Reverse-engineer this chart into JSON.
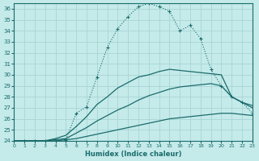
{
  "xlabel": "Humidex (Indice chaleur)",
  "background_color": "#c5eaea",
  "grid_color": "#a8d5d5",
  "line_color": "#1a6b6b",
  "xlim": [
    0,
    23
  ],
  "ylim": [
    24,
    36.5
  ],
  "xticks": [
    0,
    1,
    2,
    3,
    4,
    5,
    6,
    7,
    8,
    9,
    10,
    11,
    12,
    13,
    14,
    15,
    16,
    17,
    18,
    19,
    20,
    21,
    22,
    23
  ],
  "yticks": [
    24,
    25,
    26,
    27,
    28,
    29,
    30,
    31,
    32,
    33,
    34,
    35,
    36
  ],
  "series": [
    {
      "x": [
        0,
        1,
        2,
        3,
        4,
        5,
        6,
        7,
        8,
        9,
        10,
        11,
        12,
        13,
        14,
        15,
        16,
        17,
        18,
        19,
        20,
        21,
        22,
        23
      ],
      "y": [
        24,
        24,
        24,
        24,
        24.0,
        24.1,
        26.5,
        27.1,
        29.8,
        32.5,
        34.2,
        35.3,
        36.2,
        36.5,
        36.2,
        35.8,
        34.0,
        34.5,
        33.3,
        30.5,
        29.0,
        28.0,
        27.5,
        26.5
      ],
      "marker": "+",
      "linestyle": ":"
    },
    {
      "x": [
        0,
        1,
        2,
        3,
        4,
        5,
        6,
        7,
        8,
        9,
        10,
        11,
        12,
        13,
        14,
        15,
        16,
        17,
        18,
        19,
        20,
        21,
        22,
        23
      ],
      "y": [
        24,
        24,
        24,
        24,
        24.2,
        24.5,
        25.3,
        26.2,
        27.3,
        28.0,
        28.8,
        29.3,
        29.8,
        30.0,
        30.3,
        30.5,
        30.4,
        30.3,
        30.2,
        30.1,
        30.0,
        28.0,
        27.5,
        27.0
      ],
      "marker": null,
      "linestyle": "-"
    },
    {
      "x": [
        0,
        1,
        2,
        3,
        4,
        5,
        6,
        7,
        8,
        9,
        10,
        11,
        12,
        13,
        14,
        15,
        16,
        17,
        18,
        19,
        20,
        21,
        22,
        23
      ],
      "y": [
        24,
        24,
        24,
        24,
        24.1,
        24.2,
        24.7,
        25.2,
        25.8,
        26.3,
        26.8,
        27.2,
        27.7,
        28.1,
        28.4,
        28.7,
        28.9,
        29.0,
        29.1,
        29.2,
        29.0,
        28.0,
        27.5,
        27.2
      ],
      "marker": null,
      "linestyle": "-"
    },
    {
      "x": [
        0,
        1,
        2,
        3,
        4,
        5,
        6,
        7,
        8,
        9,
        10,
        11,
        12,
        13,
        14,
        15,
        16,
        17,
        18,
        19,
        20,
        21,
        22,
        23
      ],
      "y": [
        24,
        24,
        24,
        24,
        24.0,
        24.1,
        24.2,
        24.4,
        24.6,
        24.8,
        25.0,
        25.2,
        25.4,
        25.6,
        25.8,
        26.0,
        26.1,
        26.2,
        26.3,
        26.4,
        26.5,
        26.5,
        26.4,
        26.3
      ],
      "marker": null,
      "linestyle": "-"
    }
  ]
}
